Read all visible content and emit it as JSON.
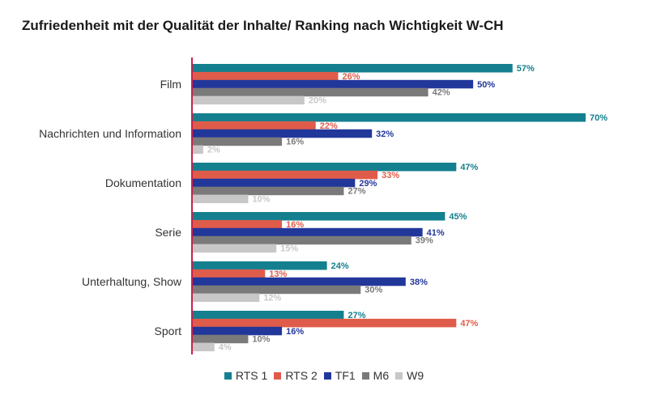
{
  "title": "Zufriedenheit mit der Qualität der Inhalte/ Ranking nach Wichtigkeit W-CH",
  "chart_data": {
    "type": "bar",
    "orientation": "horizontal",
    "title": "Zufriedenheit mit der Qualität der Inhalte/ Ranking nach Wichtigkeit W-CH",
    "categories": [
      "Film",
      "Nachrichten und Information",
      "Dokumentation",
      "Serie",
      "Unterhaltung, Show",
      "Sport"
    ],
    "series": [
      {
        "name": "RTS 1",
        "color": "#14808f",
        "label_color": "#14808f",
        "values": [
          57,
          70,
          47,
          45,
          24,
          27
        ]
      },
      {
        "name": "RTS 2",
        "color": "#e05c4a",
        "label_color": "#e05c4a",
        "values": [
          26,
          22,
          33,
          16,
          13,
          47
        ]
      },
      {
        "name": "TF1",
        "color": "#22379a",
        "label_color": "#22379a",
        "values": [
          50,
          32,
          29,
          41,
          38,
          16
        ]
      },
      {
        "name": "M6",
        "color": "#7a7a7a",
        "label_color": "#7a7a7a",
        "values": [
          42,
          16,
          27,
          39,
          30,
          10
        ]
      },
      {
        "name": "W9",
        "color": "#c7c7c7",
        "label_color": "#c7c7c7",
        "values": [
          20,
          2,
          10,
          15,
          12,
          4
        ]
      }
    ],
    "value_suffix": "%",
    "xlim": [
      0,
      70
    ],
    "axis_color": "#cc1f4a",
    "grid": false,
    "legend_position": "bottom"
  }
}
